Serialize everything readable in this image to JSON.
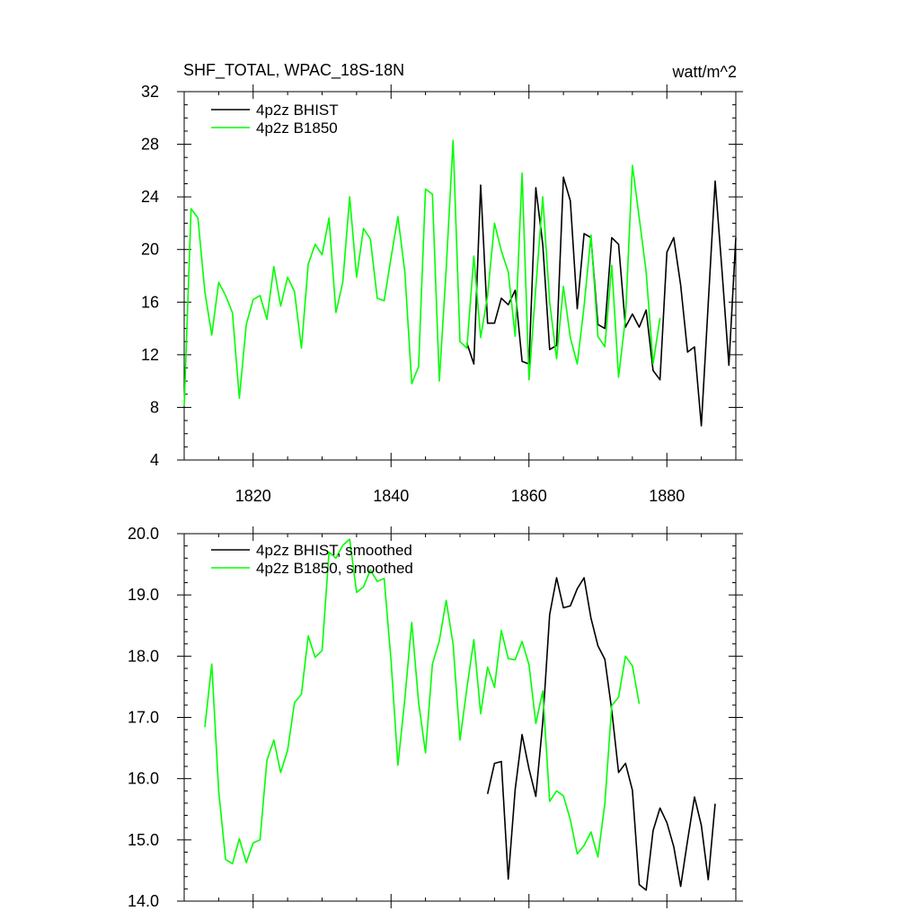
{
  "chart_data": [
    {
      "type": "line",
      "title": "SHF_TOTAL, WPAC_18S-18N",
      "units": "watt/m^2",
      "xlim": [
        1810,
        1890
      ],
      "ylim": [
        4,
        32
      ],
      "xticks": [
        1820,
        1840,
        1860,
        1880
      ],
      "yticks": [
        4,
        8,
        12,
        16,
        20,
        24,
        28,
        32
      ],
      "xtick_labels": [
        "1820",
        "1840",
        "1860",
        "1880"
      ],
      "ytick_labels": [
        "4",
        "8",
        "12",
        "16",
        "20",
        "24",
        "28",
        "32"
      ],
      "legend_position": "top-left",
      "series": [
        {
          "name": "4p2z BHIST",
          "color": "#000000",
          "x": [
            1851,
            1852,
            1853,
            1854,
            1855,
            1856,
            1857,
            1858,
            1859,
            1860,
            1861,
            1862,
            1863,
            1864,
            1865,
            1866,
            1867,
            1868,
            1869,
            1870,
            1871,
            1872,
            1873,
            1874,
            1875,
            1876,
            1877,
            1878,
            1879,
            1880,
            1881,
            1882,
            1883,
            1884,
            1885,
            1886,
            1887,
            1888,
            1889,
            1890
          ],
          "values": [
            12.9,
            11.3,
            24.9,
            14.4,
            14.4,
            16.3,
            15.8,
            16.9,
            11.5,
            11.3,
            24.7,
            20.4,
            12.4,
            12.7,
            25.5,
            23.7,
            15.5,
            21.2,
            20.9,
            14.3,
            14.0,
            20.9,
            20.4,
            14.1,
            15.1,
            14.1,
            15.4,
            10.8,
            10.1,
            19.8,
            20.9,
            17.3,
            12.2,
            12.6,
            6.6,
            15.9,
            25.2,
            18.4,
            11.2,
            20.9
          ]
        },
        {
          "name": "4p2z B1850",
          "color": "#00ff00",
          "x": [
            1810,
            1811,
            1812,
            1813,
            1814,
            1815,
            1816,
            1817,
            1818,
            1819,
            1820,
            1821,
            1822,
            1823,
            1824,
            1825,
            1826,
            1827,
            1828,
            1829,
            1830,
            1831,
            1832,
            1833,
            1834,
            1835,
            1836,
            1837,
            1838,
            1839,
            1840,
            1841,
            1842,
            1843,
            1844,
            1845,
            1846,
            1847,
            1848,
            1849,
            1850,
            1851,
            1852,
            1853,
            1854,
            1855,
            1856,
            1857,
            1858,
            1859,
            1860,
            1861,
            1862,
            1863,
            1864,
            1865,
            1866,
            1867,
            1868,
            1869,
            1870,
            1871,
            1872,
            1873,
            1874,
            1875,
            1876,
            1877,
            1878,
            1879
          ],
          "values": [
            8.1,
            23.1,
            22.4,
            16.8,
            13.5,
            17.5,
            16.5,
            15.2,
            8.7,
            14.3,
            16.2,
            16.5,
            14.7,
            18.7,
            15.7,
            17.9,
            16.8,
            12.5,
            18.9,
            20.4,
            19.6,
            22.4,
            15.2,
            17.5,
            24.0,
            17.9,
            21.6,
            20.8,
            16.3,
            16.1,
            19.4,
            22.5,
            18.3,
            9.8,
            11.1,
            24.6,
            24.2,
            10.0,
            18.5,
            28.3,
            13.0,
            12.5,
            19.5,
            13.3,
            16.5,
            22.0,
            19.9,
            18.3,
            13.4,
            25.8,
            10.1,
            17.1,
            24.0,
            16.0,
            11.7,
            17.2,
            13.3,
            11.3,
            15.7,
            21.1,
            13.4,
            12.6,
            18.8,
            10.3,
            14.8,
            26.4,
            22.4,
            18.3,
            11.3,
            14.8
          ]
        }
      ]
    },
    {
      "type": "line",
      "title": "",
      "xlim": [
        1810,
        1890
      ],
      "ylim": [
        14.0,
        20.0
      ],
      "xticks": [
        1820,
        1840,
        1860,
        1880
      ],
      "yticks": [
        14.0,
        15.0,
        16.0,
        17.0,
        18.0,
        19.0,
        20.0
      ],
      "ytick_labels": [
        "14.0",
        "15.0",
        "16.0",
        "17.0",
        "18.0",
        "19.0",
        "20.0"
      ],
      "legend_position": "top-left",
      "series": [
        {
          "name": "4p2z BHIST, smoothed",
          "color": "#000000",
          "x": [
            1854,
            1855,
            1856,
            1857,
            1858,
            1859,
            1860,
            1861,
            1862,
            1863,
            1864,
            1865,
            1866,
            1867,
            1868,
            1869,
            1870,
            1871,
            1872,
            1873,
            1874,
            1875,
            1876,
            1877,
            1878,
            1879,
            1880,
            1881,
            1882,
            1883,
            1884,
            1885,
            1886,
            1887
          ],
          "values": [
            15.75,
            16.25,
            16.28,
            14.36,
            15.82,
            16.72,
            16.16,
            15.71,
            16.92,
            18.68,
            19.28,
            18.79,
            18.82,
            19.1,
            19.28,
            18.62,
            18.17,
            17.95,
            17.12,
            16.1,
            16.25,
            15.81,
            14.27,
            14.18,
            15.15,
            15.52,
            15.28,
            14.89,
            14.24,
            14.99,
            15.7,
            15.24,
            14.35,
            15.59
          ]
        },
        {
          "name": "4p2z B1850, smoothed",
          "color": "#00ff00",
          "x": [
            1813,
            1814,
            1815,
            1816,
            1817,
            1818,
            1819,
            1820,
            1821,
            1822,
            1823,
            1824,
            1825,
            1826,
            1827,
            1828,
            1829,
            1830,
            1831,
            1832,
            1833,
            1834,
            1835,
            1836,
            1837,
            1838,
            1839,
            1840,
            1841,
            1842,
            1843,
            1844,
            1845,
            1846,
            1847,
            1848,
            1849,
            1850,
            1851,
            1852,
            1853,
            1854,
            1855,
            1856,
            1857,
            1858,
            1859,
            1860,
            1861,
            1862,
            1863,
            1864,
            1865,
            1866,
            1867,
            1868,
            1869,
            1870,
            1871,
            1872,
            1873,
            1874,
            1875,
            1876
          ],
          "values": [
            16.84,
            17.87,
            15.8,
            14.68,
            14.61,
            15.02,
            14.63,
            14.95,
            15.0,
            16.3,
            16.63,
            16.1,
            16.46,
            17.24,
            17.38,
            18.33,
            17.98,
            18.09,
            19.7,
            19.6,
            19.81,
            19.91,
            19.04,
            19.13,
            19.41,
            19.22,
            19.27,
            17.92,
            16.22,
            17.3,
            18.55,
            17.25,
            16.42,
            17.87,
            18.25,
            18.91,
            18.2,
            16.63,
            17.48,
            18.27,
            17.06,
            17.82,
            17.49,
            18.42,
            17.96,
            17.94,
            18.24,
            17.86,
            16.9,
            17.43,
            15.63,
            15.8,
            15.72,
            15.33,
            14.77,
            14.91,
            15.13,
            14.72,
            15.59,
            17.19,
            17.33,
            18.0,
            17.84,
            17.22
          ]
        }
      ]
    }
  ]
}
